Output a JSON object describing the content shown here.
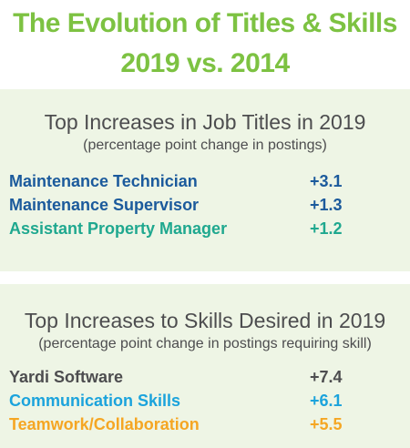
{
  "header": {
    "title_line_1": "The Evolution of Titles & Skills",
    "title_line_2": "2019 vs. 2014"
  },
  "job_titles": {
    "heading": "Top Increases in Job Titles in 2019",
    "subheading": "(percentage point change in postings)",
    "items": [
      {
        "label": "Maintenance Technician",
        "value": "+3.1",
        "color": "#1b5a9c"
      },
      {
        "label": "Maintenance Supervisor",
        "value": "+1.3",
        "color": "#1b5a9c"
      },
      {
        "label": "Assistant Property Manager",
        "value": "+1.2",
        "color": "#1fa88f"
      }
    ]
  },
  "skills": {
    "heading": "Top Increases to Skills Desired in 2019",
    "subheading": "(percentage point change in postings requiring skill)",
    "items": [
      {
        "label": "Yardi Software",
        "value": "+7.4",
        "color": "#4d4d4f"
      },
      {
        "label": "Communication Skills",
        "value": "+6.1",
        "color": "#1ba3dc"
      },
      {
        "label": "Teamwork/Collaboration",
        "value": "+5.5",
        "color": "#f5a623"
      }
    ]
  },
  "colors": {
    "title_green": "#7dc242",
    "panel_background": "#eef5e5",
    "heading_gray": "#4d4d4f"
  }
}
